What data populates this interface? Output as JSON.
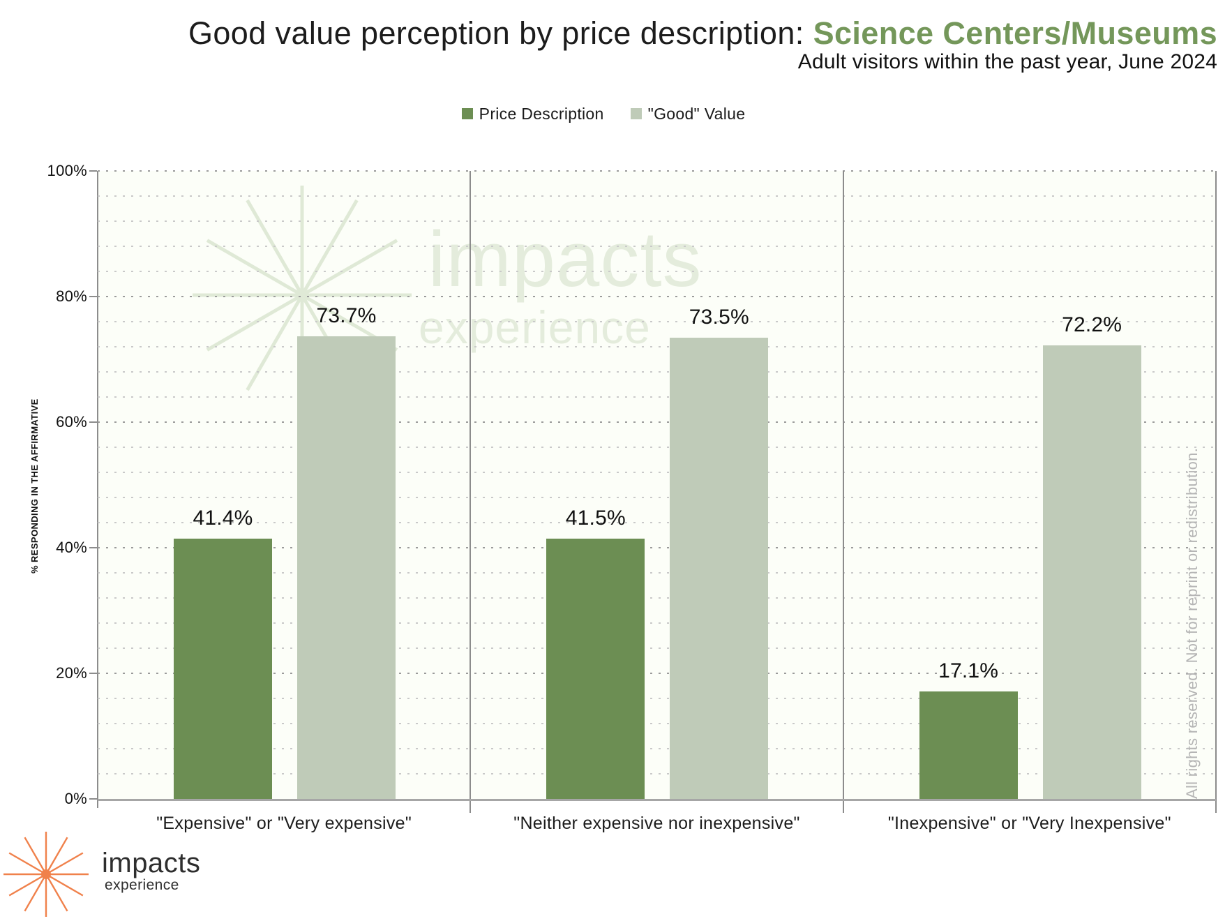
{
  "title": {
    "prefix": "Good value perception by price description: ",
    "highlight": "Science Centers/Museums",
    "highlight_color": "#74975A"
  },
  "subtitle": "Adult visitors within the past year, June 2024",
  "legend": [
    {
      "label": "Price Description",
      "color": "#6C8E53"
    },
    {
      "label": "\"Good\" Value",
      "color": "#BFCBB8"
    }
  ],
  "chart_data": {
    "type": "bar",
    "title": "Good value perception by price description: Science Centers/Museums",
    "subtitle": "Adult visitors within the past year, June 2024",
    "categories": [
      "\"Expensive\" or \"Very expensive\"",
      "\"Neither expensive nor inexpensive\"",
      "\"Inexpensive\" or \"Very Inexpensive\""
    ],
    "series": [
      {
        "name": "Price Description",
        "color": "#6C8E53",
        "values": [
          41.4,
          41.5,
          17.1
        ]
      },
      {
        "name": "\"Good\" Value",
        "color": "#BFCBB8",
        "values": [
          73.7,
          73.5,
          72.2
        ]
      }
    ],
    "value_labels": [
      [
        "41.4%",
        "73.7%"
      ],
      [
        "41.5%",
        "73.5%"
      ],
      [
        "17.1%",
        "72.2%"
      ]
    ],
    "xlabel": "",
    "ylabel": "% RESPONDING IN THE AFFIRMATIVE",
    "ylim": [
      0,
      100
    ],
    "ytick_interval": 20,
    "ytick_labels": [
      "0%",
      "20%",
      "40%",
      "60%",
      "80%",
      "100%"
    ],
    "minor_grid_interval": 4,
    "grid_style": "dotted horizontal",
    "legend_position": "top center"
  },
  "watermark": {
    "line1": "impacts",
    "line2": "experience",
    "text_color": "#E4ECDC",
    "star_color": "#DFE9D6"
  },
  "rights_notice": "All rights reserved. Not for reprint or redistribution.",
  "logo": {
    "name": "impacts",
    "sub": "experience",
    "star_color": "#F0814B",
    "text_color": "#2e2e2e"
  },
  "colors": {
    "axis_gray": "#8c8c8c",
    "plot_background": "#FCFEF8",
    "major_grid": "#9b9b9b",
    "minor_grid": "#c9c9c9"
  }
}
